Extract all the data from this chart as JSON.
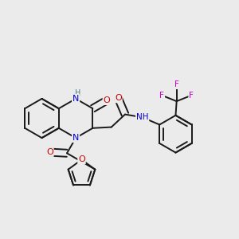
{
  "bg_color": "#ebebeb",
  "bond_color": "#1a1a1a",
  "atom_color_N": "#0000cc",
  "atom_color_O": "#cc0000",
  "atom_color_F": "#cc00cc",
  "atom_color_H": "#4d8080",
  "bond_width": 1.4,
  "fig_size": [
    3.0,
    3.0
  ],
  "dpi": 100,
  "xlim": [
    0.0,
    1.0
  ],
  "ylim": [
    0.05,
    1.05
  ]
}
